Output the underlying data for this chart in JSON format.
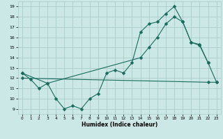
{
  "xlabel": "Humidex (Indice chaleur)",
  "xlim": [
    -0.5,
    23.5
  ],
  "ylim": [
    8.5,
    19.5
  ],
  "xticks": [
    0,
    1,
    2,
    3,
    4,
    5,
    6,
    7,
    8,
    9,
    10,
    11,
    12,
    13,
    14,
    15,
    16,
    17,
    18,
    19,
    20,
    21,
    22,
    23
  ],
  "yticks": [
    9,
    10,
    11,
    12,
    13,
    14,
    15,
    16,
    17,
    18,
    19
  ],
  "bg_color": "#cce8e6",
  "grid_color": "#aaccca",
  "line_color": "#1a6b5e",
  "line1_x": [
    0,
    1,
    2,
    3,
    4,
    5,
    6,
    7,
    8,
    9,
    10,
    11,
    12,
    13,
    14,
    15,
    16,
    17,
    18,
    19,
    20,
    21,
    22
  ],
  "line1_y": [
    12.5,
    11.9,
    11.0,
    11.5,
    10.0,
    9.0,
    9.3,
    9.0,
    10.0,
    10.5,
    12.5,
    12.8,
    12.5,
    13.5,
    16.5,
    17.3,
    17.5,
    18.3,
    19.0,
    17.5,
    15.5,
    15.3,
    13.5
  ],
  "line2_x": [
    0,
    3,
    14,
    15,
    16,
    17,
    18,
    19,
    20,
    21,
    22,
    23
  ],
  "line2_y": [
    12.5,
    11.5,
    14.0,
    15.0,
    16.0,
    17.3,
    18.0,
    17.5,
    15.5,
    15.2,
    13.5,
    11.6
  ],
  "line3_x": [
    0,
    22,
    23
  ],
  "line3_y": [
    12.0,
    11.6,
    11.6
  ],
  "markersize": 2.5
}
